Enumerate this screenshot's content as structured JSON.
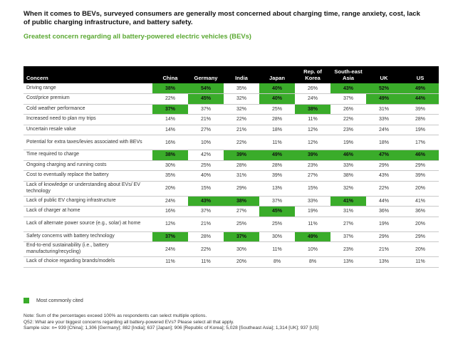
{
  "title": "When it comes to BEVs, surveyed consumers are generally most concerned about charging time, range anxiety, cost, lack of public charging infrastructure, and battery safety.",
  "subtitle": "Greatest concern regarding all battery-powered electric vehicles (BEVs)",
  "legend_label": "Most commonly cited",
  "highlight_color": "#3aac2a",
  "notes": [
    "Note: Sum of the percentages exceed 100% as respondents can select multiple options.",
    "Q52: What are your biggest concerns regarding all battery-powered EVs? Please select all that apply.",
    "Sample size: n= 939 [China]; 1,306 [Germany]; 882 [India]; 637 [Japan]; 906 [Republic of Korea]; 5,028 [Southeast Asia]; 1,314 [UK]; 937 [US]"
  ],
  "chart_data": {
    "type": "table",
    "row_header": "Concern",
    "columns": [
      "China",
      "Germany",
      "India",
      "Japan",
      "Rep. of Korea",
      "South-east Asia",
      "UK",
      "US"
    ],
    "rows": [
      {
        "label": "Driving range",
        "values": [
          "38%",
          "54%",
          "35%",
          "40%",
          "26%",
          "43%",
          "52%",
          "49%"
        ],
        "highlight": [
          true,
          true,
          false,
          true,
          false,
          true,
          true,
          true
        ]
      },
      {
        "label": "Cost/price premium",
        "values": [
          "22%",
          "45%",
          "32%",
          "40%",
          "24%",
          "37%",
          "49%",
          "44%"
        ],
        "highlight": [
          false,
          true,
          false,
          true,
          false,
          false,
          true,
          true
        ]
      },
      {
        "label": "Cold weather performance",
        "values": [
          "37%",
          "37%",
          "32%",
          "25%",
          "38%",
          "26%",
          "31%",
          "39%"
        ],
        "highlight": [
          true,
          false,
          false,
          false,
          true,
          false,
          false,
          false
        ]
      },
      {
        "label": "Increased need to plan my trips",
        "values": [
          "14%",
          "21%",
          "22%",
          "28%",
          "11%",
          "22%",
          "33%",
          "28%"
        ],
        "highlight": [
          false,
          false,
          false,
          false,
          false,
          false,
          false,
          false
        ]
      },
      {
        "label": "Uncertain resale value",
        "values": [
          "14%",
          "27%",
          "21%",
          "18%",
          "12%",
          "23%",
          "24%",
          "19%"
        ],
        "highlight": [
          false,
          false,
          false,
          false,
          false,
          false,
          false,
          false
        ]
      },
      {
        "label": "Potential for extra taxes/levies associated with BEVs",
        "values": [
          "16%",
          "10%",
          "22%",
          "11%",
          "12%",
          "19%",
          "18%",
          "17%"
        ],
        "highlight": [
          false,
          false,
          false,
          false,
          false,
          false,
          false,
          false
        ]
      },
      {
        "label": "Time required to charge",
        "values": [
          "38%",
          "42%",
          "39%",
          "49%",
          "39%",
          "46%",
          "47%",
          "46%"
        ],
        "highlight": [
          true,
          false,
          true,
          true,
          true,
          true,
          true,
          true
        ]
      },
      {
        "label": "Ongoing charging and running costs",
        "values": [
          "30%",
          "25%",
          "28%",
          "28%",
          "23%",
          "33%",
          "29%",
          "29%"
        ],
        "highlight": [
          false,
          false,
          false,
          false,
          false,
          false,
          false,
          false
        ]
      },
      {
        "label": "Cost to eventually replace the battery",
        "values": [
          "35%",
          "40%",
          "31%",
          "39%",
          "27%",
          "38%",
          "43%",
          "39%"
        ],
        "highlight": [
          false,
          false,
          false,
          false,
          false,
          false,
          false,
          false
        ]
      },
      {
        "label": "Lack of knowledge or understanding about EVs/ EV technology",
        "values": [
          "20%",
          "15%",
          "29%",
          "13%",
          "15%",
          "32%",
          "22%",
          "20%"
        ],
        "highlight": [
          false,
          false,
          false,
          false,
          false,
          false,
          false,
          false
        ]
      },
      {
        "label": "Lack of public EV charging infrastructure",
        "values": [
          "24%",
          "43%",
          "38%",
          "37%",
          "33%",
          "41%",
          "44%",
          "41%"
        ],
        "highlight": [
          false,
          true,
          true,
          false,
          false,
          true,
          false,
          false
        ]
      },
      {
        "label": "Lack of charger at home",
        "values": [
          "16%",
          "37%",
          "27%",
          "45%",
          "19%",
          "31%",
          "36%",
          "36%"
        ],
        "highlight": [
          false,
          false,
          false,
          true,
          false,
          false,
          false,
          false
        ]
      },
      {
        "label": "Lack of alternate power source (e.g., solar) at home",
        "values": [
          "12%",
          "21%",
          "25%",
          "25%",
          "11%",
          "27%",
          "19%",
          "20%"
        ],
        "highlight": [
          false,
          false,
          false,
          false,
          false,
          false,
          false,
          false
        ]
      },
      {
        "label": "Safety concerns with battery technology",
        "values": [
          "37%",
          "28%",
          "37%",
          "30%",
          "49%",
          "37%",
          "29%",
          "29%"
        ],
        "highlight": [
          true,
          false,
          true,
          false,
          true,
          false,
          false,
          false
        ]
      },
      {
        "label": "End-to-end sustainability (i.e., battery manufacturing/recycling)",
        "values": [
          "24%",
          "22%",
          "30%",
          "11%",
          "10%",
          "23%",
          "21%",
          "20%"
        ],
        "highlight": [
          false,
          false,
          false,
          false,
          false,
          false,
          false,
          false
        ]
      },
      {
        "label": "Lack of choice regarding brands/models",
        "values": [
          "11%",
          "11%",
          "20%",
          "8%",
          "8%",
          "13%",
          "13%",
          "11%"
        ],
        "highlight": [
          false,
          false,
          false,
          false,
          false,
          false,
          false,
          false
        ]
      }
    ]
  }
}
